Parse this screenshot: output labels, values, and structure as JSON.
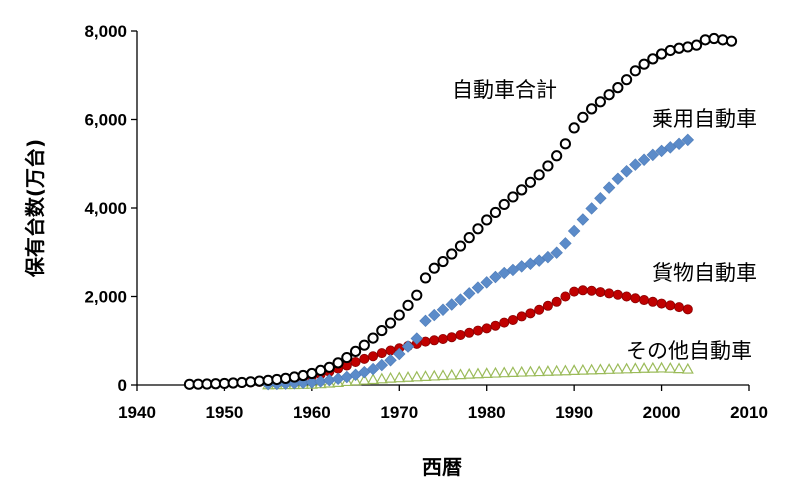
{
  "chart_data": {
    "type": "scatter",
    "title": "",
    "xlabel": "西暦",
    "ylabel": "保有台数(万台)",
    "xlim": [
      1940,
      2010
    ],
    "ylim": [
      0,
      8000
    ],
    "xticks": [
      1940,
      1950,
      1960,
      1970,
      1980,
      1990,
      2000,
      2010
    ],
    "yticks": [
      0,
      2000,
      4000,
      6000,
      8000
    ],
    "ytick_labels": [
      "0",
      "2,000",
      "4,000",
      "6,000",
      "8,000"
    ],
    "grid": false,
    "legend": "none (series labelled directly on the plot)",
    "series": [
      {
        "name": "自動車合計",
        "marker": "open-circle",
        "color": "#000000",
        "x": [
          1946,
          1947,
          1948,
          1949,
          1950,
          1951,
          1952,
          1953,
          1954,
          1955,
          1956,
          1957,
          1958,
          1959,
          1960,
          1961,
          1962,
          1963,
          1964,
          1965,
          1966,
          1967,
          1968,
          1969,
          1970,
          1971,
          1972,
          1973,
          1974,
          1975,
          1976,
          1977,
          1978,
          1979,
          1980,
          1981,
          1982,
          1983,
          1984,
          1985,
          1986,
          1987,
          1988,
          1989,
          1990,
          1991,
          1992,
          1993,
          1994,
          1995,
          1996,
          1997,
          1998,
          1999,
          2000,
          2001,
          2002,
          2003,
          2004,
          2005,
          2006,
          2007,
          2008
        ],
        "y": [
          15,
          18,
          22,
          28,
          35,
          45,
          58,
          72,
          88,
          105,
          125,
          150,
          180,
          215,
          260,
          330,
          400,
          500,
          620,
          760,
          900,
          1060,
          1230,
          1400,
          1580,
          1800,
          2030,
          2420,
          2640,
          2790,
          2960,
          3140,
          3330,
          3530,
          3730,
          3900,
          4080,
          4250,
          4410,
          4580,
          4750,
          4950,
          5180,
          5450,
          5810,
          6050,
          6240,
          6400,
          6560,
          6720,
          6900,
          7100,
          7250,
          7370,
          7480,
          7560,
          7610,
          7640,
          7680,
          7800,
          7830,
          7800,
          7770
        ]
      },
      {
        "name": "乗用自動車",
        "marker": "diamond",
        "color": "#5b8bc9",
        "x": [
          1955,
          1956,
          1957,
          1958,
          1959,
          1960,
          1961,
          1962,
          1963,
          1964,
          1965,
          1966,
          1967,
          1968,
          1969,
          1970,
          1971,
          1972,
          1973,
          1974,
          1975,
          1976,
          1977,
          1978,
          1979,
          1980,
          1981,
          1982,
          1983,
          1984,
          1985,
          1986,
          1987,
          1988,
          1989,
          1990,
          1991,
          1992,
          1993,
          1994,
          1995,
          1996,
          1997,
          1998,
          1999,
          2000,
          2001,
          2002,
          2003
        ],
        "y": [
          20,
          25,
          30,
          40,
          50,
          60,
          80,
          110,
          140,
          180,
          230,
          290,
          360,
          450,
          560,
          700,
          870,
          1050,
          1450,
          1580,
          1700,
          1820,
          1930,
          2070,
          2200,
          2320,
          2440,
          2530,
          2600,
          2680,
          2740,
          2810,
          2890,
          2990,
          3200,
          3480,
          3740,
          3990,
          4220,
          4460,
          4660,
          4830,
          4980,
          5090,
          5200,
          5290,
          5370,
          5450,
          5540
        ]
      },
      {
        "name": "貨物自動車",
        "marker": "filled-circle",
        "color": "#c00000",
        "x": [
          1946,
          1947,
          1948,
          1949,
          1950,
          1951,
          1952,
          1953,
          1954,
          1955,
          1956,
          1957,
          1958,
          1959,
          1960,
          1961,
          1962,
          1963,
          1964,
          1965,
          1966,
          1967,
          1968,
          1969,
          1970,
          1971,
          1972,
          1973,
          1974,
          1975,
          1976,
          1977,
          1978,
          1979,
          1980,
          1981,
          1982,
          1983,
          1984,
          1985,
          1986,
          1987,
          1988,
          1989,
          1990,
          1991,
          1992,
          1993,
          1994,
          1995,
          1996,
          1997,
          1998,
          1999,
          2000,
          2001,
          2002,
          2003
        ],
        "y": [
          10,
          14,
          18,
          22,
          28,
          35,
          45,
          58,
          70,
          85,
          100,
          118,
          140,
          165,
          195,
          240,
          300,
          370,
          440,
          520,
          590,
          650,
          720,
          780,
          830,
          880,
          930,
          980,
          1010,
          1040,
          1080,
          1130,
          1180,
          1230,
          1280,
          1340,
          1410,
          1470,
          1550,
          1620,
          1700,
          1790,
          1880,
          2000,
          2110,
          2140,
          2130,
          2100,
          2070,
          2040,
          2000,
          1960,
          1920,
          1880,
          1840,
          1800,
          1760,
          1710
        ]
      },
      {
        "name": "その他自動車",
        "marker": "open-triangle",
        "color": "#9bbb59",
        "x": [
          1955,
          1956,
          1957,
          1958,
          1959,
          1960,
          1961,
          1962,
          1963,
          1964,
          1965,
          1966,
          1967,
          1968,
          1969,
          1970,
          1971,
          1972,
          1973,
          1974,
          1975,
          1976,
          1977,
          1978,
          1979,
          1980,
          1981,
          1982,
          1983,
          1984,
          1985,
          1986,
          1987,
          1988,
          1989,
          1990,
          1991,
          1992,
          1993,
          1994,
          1995,
          1996,
          1997,
          1998,
          1999,
          2000,
          2001,
          2002,
          2003
        ],
        "y": [
          5,
          8,
          10,
          12,
          15,
          20,
          30,
          45,
          60,
          80,
          95,
          110,
          125,
          140,
          155,
          165,
          175,
          185,
          195,
          205,
          215,
          225,
          235,
          245,
          255,
          262,
          270,
          278,
          285,
          292,
          298,
          304,
          310,
          316,
          322,
          330,
          336,
          342,
          348,
          354,
          360,
          366,
          372,
          378,
          382,
          386,
          380,
          370,
          360
        ]
      }
    ]
  }
}
